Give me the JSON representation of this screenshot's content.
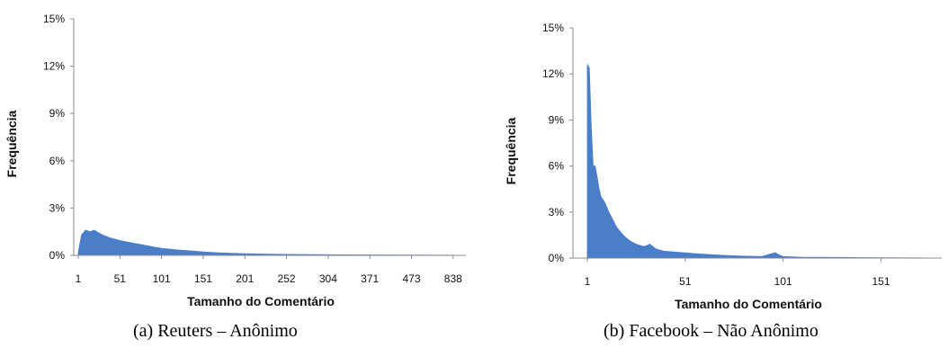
{
  "chart_data": [
    {
      "type": "area",
      "caption": "(a) Reuters – Anônimo",
      "xlabel": "Tamanho do Comentário",
      "ylabel": "Frequência",
      "y_ticks": [
        "0%",
        "3%",
        "6%",
        "9%",
        "12%",
        "15%"
      ],
      "ylim": [
        0,
        15
      ],
      "x_ticks": [
        "1",
        "51",
        "101",
        "151",
        "201",
        "252",
        "304",
        "371",
        "473",
        "838"
      ],
      "grid": false,
      "color": "#4a7ec9",
      "series": [
        {
          "x": [
            1,
            5,
            10,
            15,
            20,
            25,
            30,
            40,
            50,
            60,
            70,
            80,
            90,
            101,
            120,
            140,
            151,
            170,
            201,
            230,
            252,
            304,
            371,
            473,
            838
          ],
          "values": [
            0.2,
            1.3,
            1.6,
            1.5,
            1.6,
            1.45,
            1.3,
            1.1,
            0.95,
            0.85,
            0.75,
            0.65,
            0.55,
            0.45,
            0.35,
            0.27,
            0.22,
            0.16,
            0.11,
            0.08,
            0.06,
            0.04,
            0.03,
            0.02,
            0.01
          ]
        }
      ]
    },
    {
      "type": "area",
      "caption": "(b) Facebook – Não Anônimo",
      "xlabel": "Tamanho do Comentário",
      "ylabel": "Frequência",
      "y_ticks": [
        "0%",
        "3%",
        "6%",
        "9%",
        "12%",
        "15%"
      ],
      "ylim": [
        0,
        15
      ],
      "x_ticks": [
        "1",
        "51",
        "101",
        "151"
      ],
      "xlim": [
        1,
        182
      ],
      "grid": false,
      "color": "#4a7ec9",
      "series": [
        {
          "x": [
            1,
            2,
            3,
            4,
            5,
            6,
            7,
            8,
            10,
            12,
            14,
            16,
            18,
            20,
            23,
            26,
            30,
            33,
            36,
            40,
            45,
            50,
            55,
            60,
            70,
            80,
            90,
            97,
            99,
            101,
            110,
            130,
            150,
            170,
            182
          ],
          "values": [
            12.6,
            12.4,
            8.5,
            6.0,
            6.0,
            5.3,
            4.5,
            4.0,
            3.6,
            3.0,
            2.5,
            2.0,
            1.7,
            1.4,
            1.1,
            0.9,
            0.75,
            0.9,
            0.6,
            0.45,
            0.4,
            0.35,
            0.3,
            0.25,
            0.18,
            0.13,
            0.1,
            0.35,
            0.2,
            0.1,
            0.06,
            0.04,
            0.02,
            0.01,
            0.0
          ]
        }
      ]
    }
  ]
}
